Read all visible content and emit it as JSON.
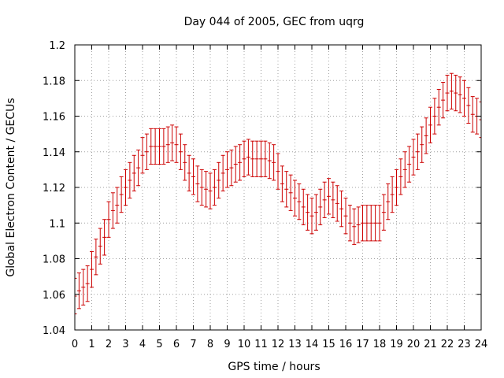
{
  "chart_data": {
    "type": "scatter",
    "title": "Day 044 of 2005, GEC from uqrg",
    "xlabel": "GPS time / hours",
    "ylabel": "Global Electron Content / GECUs",
    "xlim": [
      0,
      24
    ],
    "ylim": [
      1.04,
      1.2
    ],
    "grid": true,
    "legend": "none",
    "error_bar_half_width": 0.01,
    "colors": {
      "series": "#cc0000",
      "grid": "#a0a0a0",
      "axis": "#000000"
    },
    "x_ticks": [
      0,
      1,
      2,
      3,
      4,
      5,
      6,
      7,
      8,
      9,
      10,
      11,
      12,
      13,
      14,
      15,
      16,
      17,
      18,
      19,
      20,
      21,
      22,
      23,
      24
    ],
    "y_ticks": [
      "1.04",
      "1.06",
      "1.08",
      "1.1",
      "1.12",
      "1.14",
      "1.16",
      "1.18",
      "1.2"
    ],
    "series": [
      {
        "x": [
          0,
          0.25,
          0.5,
          0.75,
          1,
          1.25,
          1.5,
          1.75,
          2,
          2.25,
          2.5,
          2.75,
          3,
          3.25,
          3.5,
          3.75,
          4,
          4.25,
          4.5,
          4.75,
          5,
          5.25,
          5.5,
          5.75,
          6,
          6.25,
          6.5,
          6.75,
          7,
          7.25,
          7.5,
          7.75,
          8,
          8.25,
          8.5,
          8.75,
          9,
          9.25,
          9.5,
          9.75,
          10,
          10.25,
          10.5,
          10.75,
          11,
          11.25,
          11.5,
          11.75,
          12,
          12.25,
          12.5,
          12.75,
          13,
          13.25,
          13.5,
          13.75,
          14,
          14.25,
          14.5,
          14.75,
          15,
          15.25,
          15.5,
          15.75,
          16,
          16.25,
          16.5,
          16.75,
          17,
          17.25,
          17.5,
          17.75,
          18,
          18.25,
          18.5,
          18.75,
          19,
          19.25,
          19.5,
          19.75,
          20,
          20.25,
          20.5,
          20.75,
          21,
          21.25,
          21.5,
          21.75,
          22,
          22.25,
          22.5,
          22.75,
          23,
          23.25,
          23.5,
          23.75,
          24
        ],
        "y": [
          1.059,
          1.062,
          1.064,
          1.066,
          1.074,
          1.081,
          1.087,
          1.092,
          1.102,
          1.107,
          1.11,
          1.116,
          1.12,
          1.124,
          1.128,
          1.131,
          1.138,
          1.14,
          1.143,
          1.143,
          1.143,
          1.143,
          1.144,
          1.145,
          1.144,
          1.14,
          1.134,
          1.128,
          1.126,
          1.122,
          1.12,
          1.119,
          1.118,
          1.12,
          1.124,
          1.128,
          1.13,
          1.131,
          1.133,
          1.134,
          1.136,
          1.137,
          1.136,
          1.136,
          1.136,
          1.136,
          1.135,
          1.134,
          1.129,
          1.122,
          1.119,
          1.117,
          1.114,
          1.112,
          1.109,
          1.106,
          1.104,
          1.106,
          1.109,
          1.113,
          1.115,
          1.113,
          1.111,
          1.108,
          1.104,
          1.1,
          1.098,
          1.099,
          1.1,
          1.1,
          1.1,
          1.1,
          1.1,
          1.106,
          1.112,
          1.116,
          1.12,
          1.126,
          1.13,
          1.133,
          1.137,
          1.14,
          1.144,
          1.149,
          1.155,
          1.16,
          1.165,
          1.169,
          1.173,
          1.174,
          1.173,
          1.172,
          1.17,
          1.166,
          1.161,
          1.16,
          1.158
        ]
      }
    ]
  }
}
